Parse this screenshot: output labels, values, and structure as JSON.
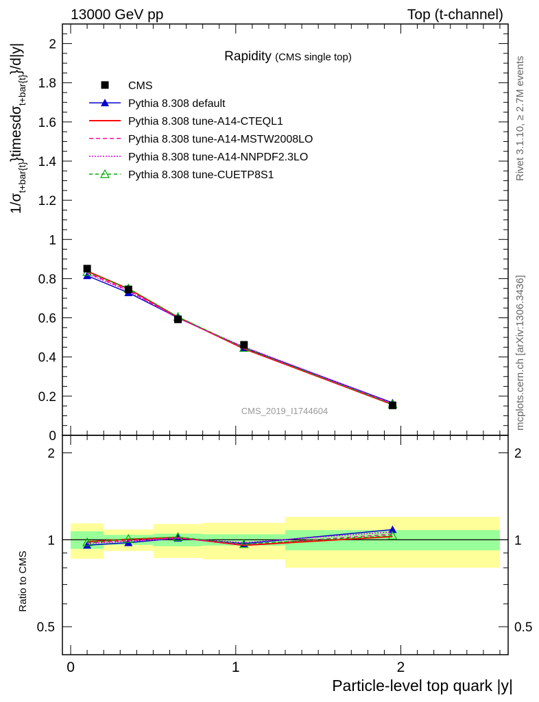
{
  "header": {
    "energy_label": "13000 GeV pp",
    "process_label": "Top (t-channel)"
  },
  "side_labels": {
    "rivet": "Rivet 3.1.10, ≥ 2.7M events",
    "mcplots": "mcplots.cern.ch [arXiv:1306.3436]"
  },
  "chart_data": {
    "type": "line",
    "title": "Rapidity",
    "subtitle": "(CMS single top)",
    "watermark": "CMS_2019_I1744604",
    "ylabel_prefix": "1/σ",
    "ylabel_sub1": "t+bar{t}",
    "ylabel_mid": "}timesdσ",
    "ylabel_sub2": "t+bar{t}",
    "ylabel_suffix": "}/d|y|",
    "xlabel": "Particle-level top quark |y|",
    "ratio_ylabel": "Ratio to CMS",
    "xlim": [
      -0.05,
      2.65
    ],
    "ylim": [
      0,
      2.1
    ],
    "ratio_ylim": [
      0.4,
      2.3
    ],
    "x_ticks": [
      "0",
      "1",
      "2"
    ],
    "y_ticks": [
      "0",
      "0.2",
      "0.4",
      "0.6",
      "0.8",
      "1",
      "1.2",
      "1.4",
      "1.6",
      "1.8",
      "2"
    ],
    "ratio_ticks": [
      "0.5",
      "1",
      "2"
    ],
    "bin_edges": [
      0,
      0.2,
      0.5,
      0.8,
      1.3,
      2.6
    ],
    "x": [
      0.1,
      0.35,
      0.65,
      1.05,
      1.95
    ],
    "data": {
      "name": "CMS",
      "values": [
        0.851,
        0.745,
        0.592,
        0.462,
        0.153
      ],
      "stat_band": [
        0.14,
        0.08,
        0.1,
        0.09,
        0.16
      ],
      "total_band": [
        0.28,
        0.17,
        0.27,
        0.29,
        0.4
      ]
    },
    "series": [
      {
        "name": "Pythia 8.308 default",
        "color": "#0000cc",
        "dash": "",
        "marker": "triangle-filled",
        "values": [
          0.815,
          0.728,
          0.6,
          0.448,
          0.166
        ]
      },
      {
        "name": "Pythia 8.308 tune-A14-CTEQL1",
        "color": "#ff0000",
        "dash": "",
        "marker": "none",
        "values": [
          0.838,
          0.748,
          0.603,
          0.442,
          0.157
        ]
      },
      {
        "name": "Pythia 8.308 tune-A14-MSTW2008LO",
        "color": "#ff0099",
        "dash": "6,4",
        "marker": "none",
        "values": [
          0.83,
          0.74,
          0.6,
          0.444,
          0.16
        ]
      },
      {
        "name": "Pythia 8.308 tune-A14-NNPDF2.3LO",
        "color": "#e000e0",
        "dash": "2,2",
        "marker": "none",
        "values": [
          0.826,
          0.736,
          0.598,
          0.452,
          0.163
        ]
      },
      {
        "name": "Pythia 8.308 tune-CUETP8S1",
        "color": "#00aa00",
        "dash": "5,4",
        "marker": "triangle-open",
        "values": [
          0.834,
          0.75,
          0.605,
          0.446,
          0.158
        ]
      }
    ]
  }
}
